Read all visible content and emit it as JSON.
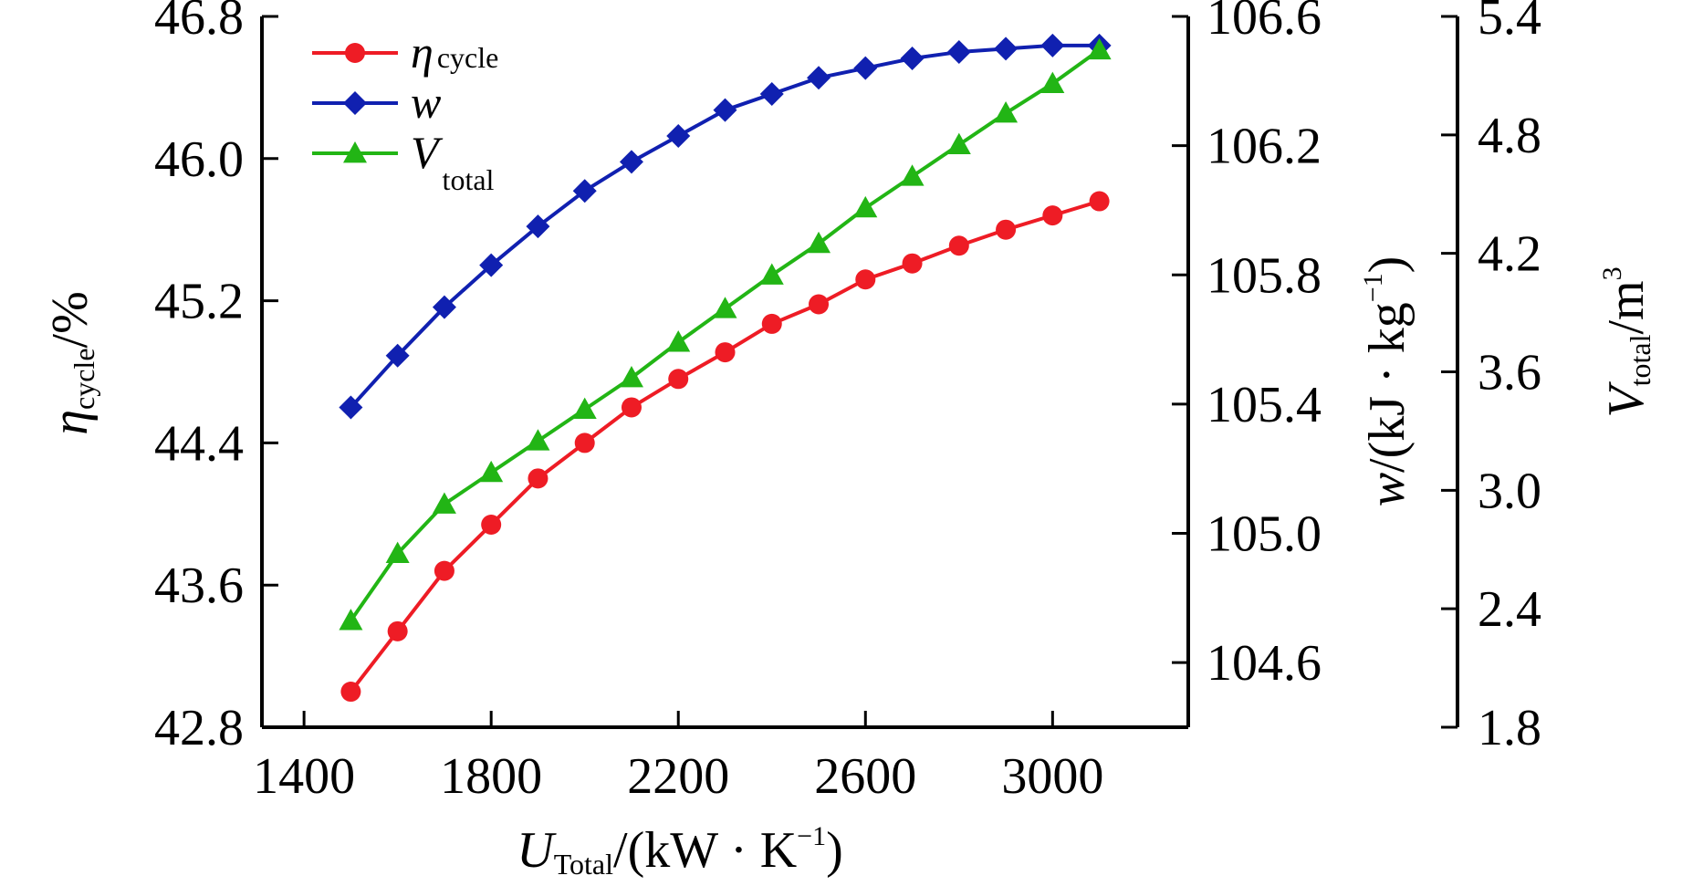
{
  "chart_data": {
    "type": "line",
    "x_axis": {
      "label_prefix": "U",
      "label_sub": "Total",
      "label_unit_open": "/(kW · K",
      "label_unit_sup": "−1",
      "label_unit_close": ")",
      "ticks": [
        "1400",
        "1800",
        "2200",
        "2600",
        "3000"
      ],
      "tick_values": [
        1400,
        1800,
        2200,
        2600,
        3000
      ],
      "range": [
        1310,
        3290
      ]
    },
    "y_axes": [
      {
        "id": "left",
        "label_prefix": "η",
        "label_sub": "cycle",
        "label_unit": "/%",
        "ticks": [
          "42.8",
          "43.6",
          "44.4",
          "45.2",
          "46.0",
          "46.8"
        ],
        "tick_values": [
          42.8,
          43.6,
          44.4,
          45.2,
          46.0,
          46.8
        ],
        "range": [
          42.8,
          46.8
        ]
      },
      {
        "id": "right1",
        "label_prefix": "w",
        "label_unit_open": "/(kJ · kg",
        "label_unit_sup": "−1",
        "label_unit_close": ")",
        "ticks": [
          "104.6",
          "105.0",
          "105.4",
          "105.8",
          "106.2",
          "106.6"
        ],
        "tick_values": [
          104.6,
          105.0,
          105.4,
          105.8,
          106.2,
          106.6
        ],
        "range": [
          104.4,
          106.6
        ]
      },
      {
        "id": "right2",
        "label_prefix": "V",
        "label_sub": "total",
        "label_unit": "/m",
        "label_unit_sup": "3",
        "ticks": [
          "1.8",
          "2.4",
          "3.0",
          "3.6",
          "4.2",
          "4.8",
          "5.4"
        ],
        "tick_values": [
          1.8,
          2.4,
          3.0,
          3.6,
          4.2,
          4.8,
          5.4
        ],
        "range": [
          1.8,
          5.4
        ]
      }
    ],
    "x": [
      1500,
      1600,
      1700,
      1800,
      1900,
      2000,
      2100,
      2200,
      2300,
      2400,
      2500,
      2600,
      2700,
      2800,
      2900,
      3000,
      3100
    ],
    "series": [
      {
        "name": "η cycle",
        "legend_main": "η",
        "legend_sub": "cycle",
        "axis": "left",
        "color": "#ee1c25",
        "marker": "circle",
        "values": [
          43.0,
          43.34,
          43.68,
          43.94,
          44.2,
          44.4,
          44.6,
          44.76,
          44.91,
          45.07,
          45.18,
          45.32,
          45.41,
          45.51,
          45.6,
          45.68,
          45.76
        ]
      },
      {
        "name": "w",
        "legend_main": "w",
        "legend_sub": "",
        "axis": "right1",
        "color": "#1020b0",
        "marker": "diamond",
        "values": [
          105.39,
          105.55,
          105.7,
          105.83,
          105.95,
          106.06,
          106.15,
          106.23,
          106.31,
          106.36,
          106.41,
          106.44,
          106.47,
          106.49,
          106.5,
          106.51,
          106.51
        ]
      },
      {
        "name": "V total",
        "legend_main": "V",
        "legend_sub": "total",
        "axis": "right2",
        "color": "#22b515",
        "marker": "triangle",
        "values": [
          2.34,
          2.68,
          2.93,
          3.09,
          3.25,
          3.41,
          3.57,
          3.75,
          3.92,
          4.09,
          4.25,
          4.43,
          4.59,
          4.75,
          4.91,
          5.06,
          5.23
        ]
      }
    ],
    "legend_position": "top-left"
  }
}
